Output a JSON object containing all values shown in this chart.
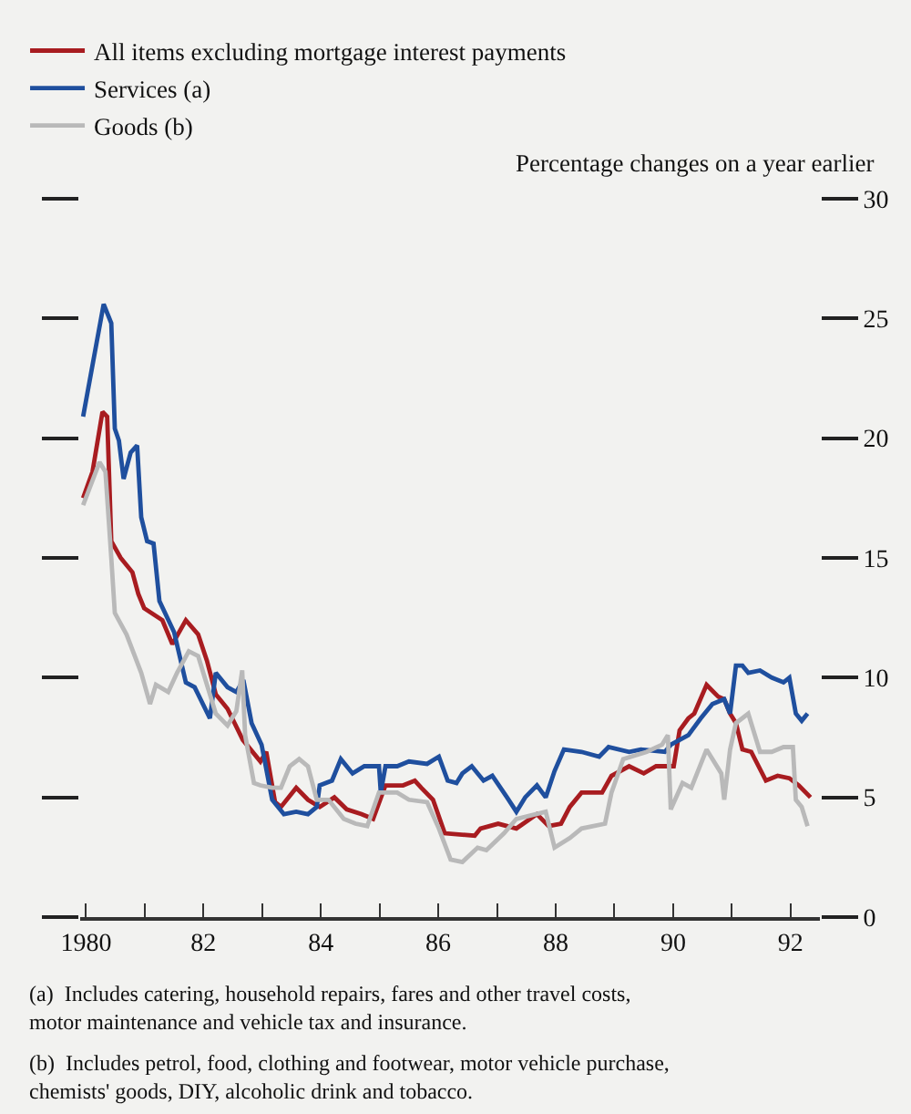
{
  "chart_data": {
    "type": "line",
    "ylabel": "Percentage changes on a year earlier",
    "legend": "top left",
    "grid": false,
    "xlim": [
      1979.9,
      1992.5
    ],
    "xticks": [
      {
        "value": 1980,
        "label": "1980"
      },
      {
        "value": 1981,
        "label": null
      },
      {
        "value": 1982,
        "label": "82"
      },
      {
        "value": 1983,
        "label": null
      },
      {
        "value": 1984,
        "label": "84"
      },
      {
        "value": 1985,
        "label": null
      },
      {
        "value": 1986,
        "label": "86"
      },
      {
        "value": 1987,
        "label": null
      },
      {
        "value": 1988,
        "label": "88"
      },
      {
        "value": 1989,
        "label": null
      },
      {
        "value": 1990,
        "label": "90"
      },
      {
        "value": 1991,
        "label": null
      },
      {
        "value": 1992,
        "label": "92"
      }
    ],
    "ylim": [
      0,
      30
    ],
    "yticks": [
      0,
      5,
      10,
      15,
      20,
      25,
      30
    ],
    "series": [
      {
        "name": "All items excluding mortgage interest payments",
        "color": "#a81c20",
        "x": [
          1979.95,
          1980.11,
          1980.28,
          1980.36,
          1980.43,
          1980.59,
          1980.79,
          1980.89,
          1980.99,
          1981.3,
          1981.47,
          1981.7,
          1981.91,
          1982.06,
          1982.21,
          1982.41,
          1982.67,
          1982.97,
          1983.07,
          1983.22,
          1983.32,
          1983.58,
          1983.78,
          1983.98,
          1984.23,
          1984.44,
          1984.69,
          1984.89,
          1985.1,
          1985.4,
          1985.6,
          1985.71,
          1985.91,
          1986.11,
          1986.62,
          1986.72,
          1987.02,
          1987.33,
          1987.68,
          1987.88,
          1988.09,
          1988.24,
          1988.44,
          1988.79,
          1988.95,
          1989.25,
          1989.5,
          1989.71,
          1990.01,
          1990.11,
          1990.26,
          1990.36,
          1990.57,
          1990.77,
          1990.87,
          1990.97,
          1991.07,
          1991.18,
          1991.33,
          1991.58,
          1991.78,
          1991.98,
          1992.14,
          1992.34
        ],
        "values": [
          17.5,
          18.6,
          21.1,
          20.9,
          15.7,
          15.0,
          14.4,
          13.5,
          12.9,
          12.4,
          11.4,
          12.4,
          11.8,
          10.7,
          9.3,
          8.7,
          7.4,
          6.5,
          6.9,
          4.8,
          4.6,
          5.4,
          4.9,
          4.6,
          5.0,
          4.5,
          4.3,
          4.1,
          5.5,
          5.5,
          5.7,
          5.4,
          4.9,
          3.5,
          3.4,
          3.7,
          3.9,
          3.7,
          4.3,
          3.8,
          3.9,
          4.6,
          5.2,
          5.2,
          5.9,
          6.3,
          6.0,
          6.3,
          6.3,
          7.8,
          8.3,
          8.5,
          9.7,
          9.2,
          9.1,
          8.5,
          8.1,
          7.0,
          6.9,
          5.7,
          5.9,
          5.8,
          5.5,
          5.0
        ]
      },
      {
        "name": "Services (a)",
        "color": "#1f4f9e",
        "x": [
          1979.95,
          1980.3,
          1980.43,
          1980.49,
          1980.56,
          1980.64,
          1980.76,
          1980.87,
          1980.94,
          1981.04,
          1981.15,
          1981.25,
          1981.5,
          1981.7,
          1981.85,
          1982.11,
          1982.21,
          1982.41,
          1982.56,
          1982.68,
          1982.82,
          1982.99,
          1983.17,
          1983.37,
          1983.58,
          1983.78,
          1983.93,
          1983.98,
          1984.19,
          1984.34,
          1984.54,
          1984.74,
          1984.89,
          1984.99,
          1985.02,
          1985.1,
          1985.3,
          1985.5,
          1985.81,
          1986.01,
          1986.16,
          1986.31,
          1986.41,
          1986.57,
          1986.77,
          1986.92,
          1987.17,
          1987.33,
          1987.48,
          1987.68,
          1987.83,
          1987.98,
          1988.14,
          1988.44,
          1988.74,
          1988.9,
          1989.25,
          1989.45,
          1989.86,
          1989.96,
          1990.26,
          1990.47,
          1990.67,
          1990.87,
          1990.97,
          1991.07,
          1991.18,
          1991.28,
          1991.48,
          1991.68,
          1991.88,
          1991.98,
          1992.09,
          1992.19,
          1992.29
        ],
        "values": [
          20.9,
          25.6,
          24.8,
          20.4,
          19.9,
          18.3,
          19.4,
          19.7,
          16.7,
          15.7,
          15.6,
          13.2,
          11.9,
          9.8,
          9.6,
          8.3,
          10.2,
          9.6,
          9.4,
          9.9,
          8.1,
          7.2,
          4.9,
          4.3,
          4.4,
          4.3,
          4.6,
          5.5,
          5.7,
          6.6,
          6.0,
          6.3,
          6.3,
          6.3,
          5.2,
          6.3,
          6.3,
          6.5,
          6.4,
          6.7,
          5.7,
          5.6,
          6.0,
          6.3,
          5.7,
          5.9,
          5.0,
          4.4,
          5.0,
          5.5,
          5.0,
          6.1,
          7.0,
          6.9,
          6.7,
          7.1,
          6.9,
          7.0,
          6.9,
          7.2,
          7.6,
          8.3,
          8.9,
          9.1,
          8.5,
          10.5,
          10.5,
          10.2,
          10.3,
          10.0,
          9.8,
          10.0,
          8.5,
          8.2,
          8.5
        ]
      },
      {
        "name": "Goods (b)",
        "color": "#b9b9b9",
        "x": [
          1979.95,
          1980.23,
          1980.33,
          1980.43,
          1980.49,
          1980.69,
          1980.94,
          1981.09,
          1981.19,
          1981.4,
          1981.55,
          1981.75,
          1981.91,
          1982.06,
          1982.21,
          1982.41,
          1982.56,
          1982.66,
          1982.71,
          1982.86,
          1982.97,
          1983.17,
          1983.32,
          1983.47,
          1983.63,
          1983.78,
          1983.93,
          1984.13,
          1984.39,
          1984.59,
          1984.79,
          1984.99,
          1985.3,
          1985.5,
          1985.81,
          1986.01,
          1986.21,
          1986.41,
          1986.67,
          1986.82,
          1987.12,
          1987.33,
          1987.83,
          1987.98,
          1988.24,
          1988.44,
          1988.84,
          1988.95,
          1989.15,
          1989.55,
          1989.81,
          1989.91,
          1989.96,
          1990.16,
          1990.31,
          1990.57,
          1990.82,
          1990.87,
          1990.97,
          1991.07,
          1991.28,
          1991.48,
          1991.68,
          1991.88,
          1992.04,
          1992.09,
          1992.19,
          1992.29
        ],
        "values": [
          17.2,
          19.0,
          18.6,
          15.0,
          12.7,
          11.8,
          10.2,
          8.9,
          9.7,
          9.4,
          10.2,
          11.1,
          10.9,
          9.7,
          8.5,
          8.0,
          8.6,
          10.3,
          7.6,
          5.6,
          5.5,
          5.4,
          5.4,
          6.3,
          6.6,
          6.3,
          4.9,
          4.9,
          4.1,
          3.9,
          3.8,
          5.2,
          5.2,
          4.9,
          4.8,
          3.7,
          2.4,
          2.3,
          2.9,
          2.8,
          3.5,
          4.1,
          4.4,
          2.9,
          3.3,
          3.7,
          3.9,
          5.2,
          6.6,
          6.9,
          7.2,
          7.6,
          4.5,
          5.6,
          5.4,
          7.0,
          6.0,
          4.9,
          7.0,
          8.1,
          8.5,
          6.9,
          6.9,
          7.1,
          7.1,
          4.9,
          4.6,
          3.8
        ]
      }
    ],
    "annotations": [
      "(a)  Includes catering, household repairs, fares and other travel costs, motor maintenance and vehicle tax and insurance.",
      "(b)  Includes petrol, food, clothing and footwear, motor vehicle purchase, chemists' goods, DIY, alcoholic drink and tobacco."
    ]
  }
}
